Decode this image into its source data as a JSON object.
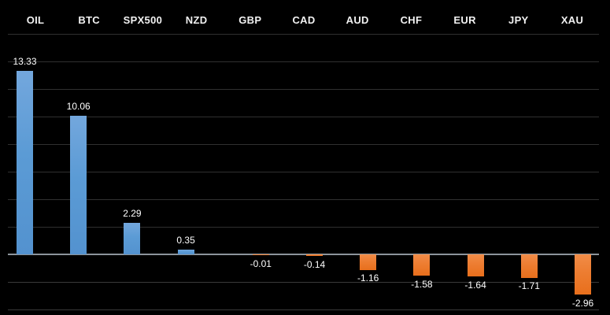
{
  "chart": {
    "background": "#000000",
    "positive_color": "#5B9BD5",
    "negative_color": "#ED7D31",
    "zero_line_color": "#8C949B",
    "gridline_color": "#303030",
    "header_text_color": "#F2F2F2",
    "value_text_color": "#FFFFFF"
  },
  "chart_data": {
    "type": "bar",
    "title": "",
    "xlabel": "",
    "ylabel": "",
    "categories": [
      "OIL",
      "BTC",
      "SPX500",
      "NZD",
      "GBP",
      "CAD",
      "AUD",
      "CHF",
      "EUR",
      "JPY",
      "XAU"
    ],
    "values": [
      13.33,
      10.06,
      2.29,
      0.35,
      -0.01,
      -0.14,
      -1.16,
      -1.58,
      -1.64,
      -1.71,
      -2.96
    ],
    "value_labels": [
      "13.33",
      "10.06",
      "2.29",
      "0.35",
      "-0.01",
      "-0.14",
      "-1.16",
      "-1.58",
      "-1.64",
      "-1.71",
      "-2.96"
    ],
    "series": [
      {
        "name": "positive",
        "color": "#5B9BD5",
        "slot": "left"
      },
      {
        "name": "negative",
        "color": "#ED7D31",
        "slot": "right"
      }
    ],
    "ylim": [
      -4,
      16
    ],
    "grid_step": 2,
    "grid": true,
    "legend": false,
    "y_tick_labels_shown": false,
    "data_labels": true
  }
}
